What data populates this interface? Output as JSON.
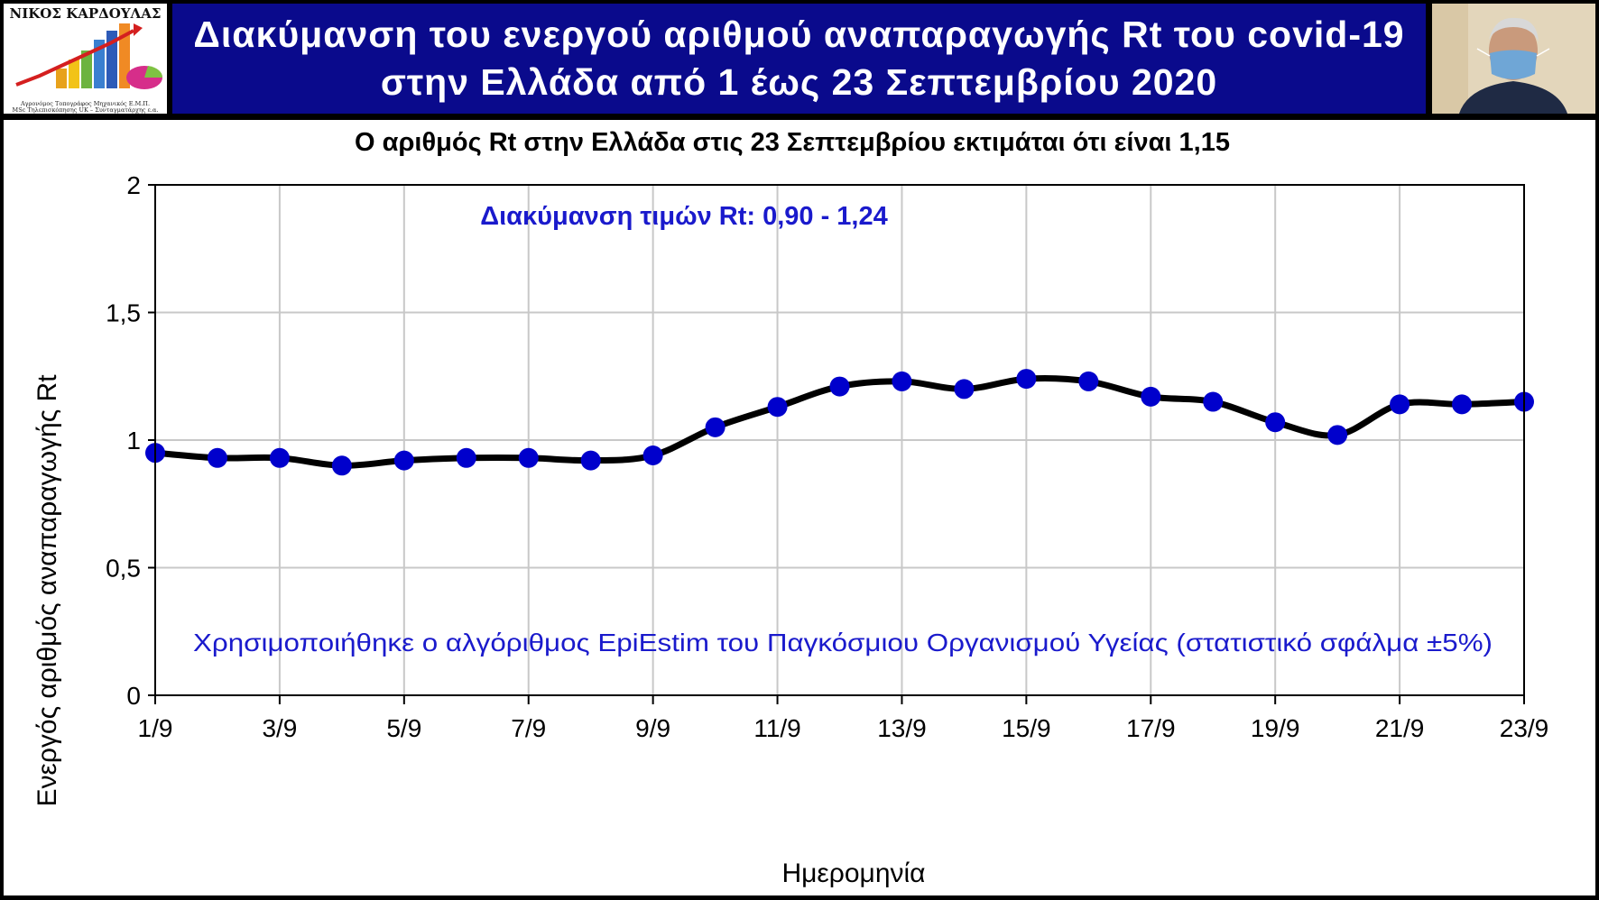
{
  "header": {
    "logo_name": "ΝΙΚΟΣ ΚΑΡΔΟΥΛΑΣ",
    "logo_line1": "Αγρονόμος Τοπογράφος Μηχανικός Ε.Μ.Π.",
    "logo_line2": "MSc Τηλεπισκόπησης UK – Συνταγματάρχης ε.α.",
    "title_line1": "Διακύμανση του ενεργού αριθμού αναπαραγωγής Rt του covid-19",
    "title_line2": "στην Ελλάδα από 1 έως 23 Σεπτεμβρίου 2020"
  },
  "chart_data": {
    "type": "line",
    "title": "Ο αριθμός Rt στην Ελλάδα στις 23 Σεπτεμβρίου εκτιμάται ότι είναι 1,15",
    "xlabel": "Ημερομηνία",
    "ylabel": "Ενεργός αριθμός αναπαραγωγής Rt",
    "ylim": [
      0,
      2
    ],
    "yticks": [
      "0",
      "0,5",
      "1",
      "1,5",
      "2"
    ],
    "xtick_labels": [
      "1/9",
      "3/9",
      "5/9",
      "7/9",
      "9/9",
      "11/9",
      "13/9",
      "15/9",
      "17/9",
      "19/9",
      "21/9",
      "23/9"
    ],
    "grid": true,
    "categories": [
      "1/9",
      "2/9",
      "3/9",
      "4/9",
      "5/9",
      "6/9",
      "7/9",
      "8/9",
      "9/9",
      "10/9",
      "11/9",
      "12/9",
      "13/9",
      "14/9",
      "15/9",
      "16/9",
      "17/9",
      "18/9",
      "19/9",
      "20/9",
      "21/9",
      "22/9",
      "23/9"
    ],
    "series": [
      {
        "values": [
          0.95,
          0.93,
          0.93,
          0.9,
          0.92,
          0.93,
          0.93,
          0.92,
          0.94,
          1.05,
          1.13,
          1.21,
          1.23,
          1.2,
          1.24,
          1.23,
          1.17,
          1.15,
          1.07,
          1.02,
          1.14,
          1.14,
          1.15
        ]
      }
    ],
    "line_color": "#000000",
    "marker_color": "#0000cc",
    "annotations": {
      "range": "Διακύμανση τιμών Rt: 0,90 - 1,24",
      "method": "Χρησιμοποιήθηκε ο αλγόριθμος EpiEstim του Παγκόσμιου Οργανισμού Υγείας (στατιστικό σφάλμα ±5%)"
    }
  },
  "colors": {
    "title_band": "#0a0a8c",
    "annotation": "#1a1acc"
  }
}
